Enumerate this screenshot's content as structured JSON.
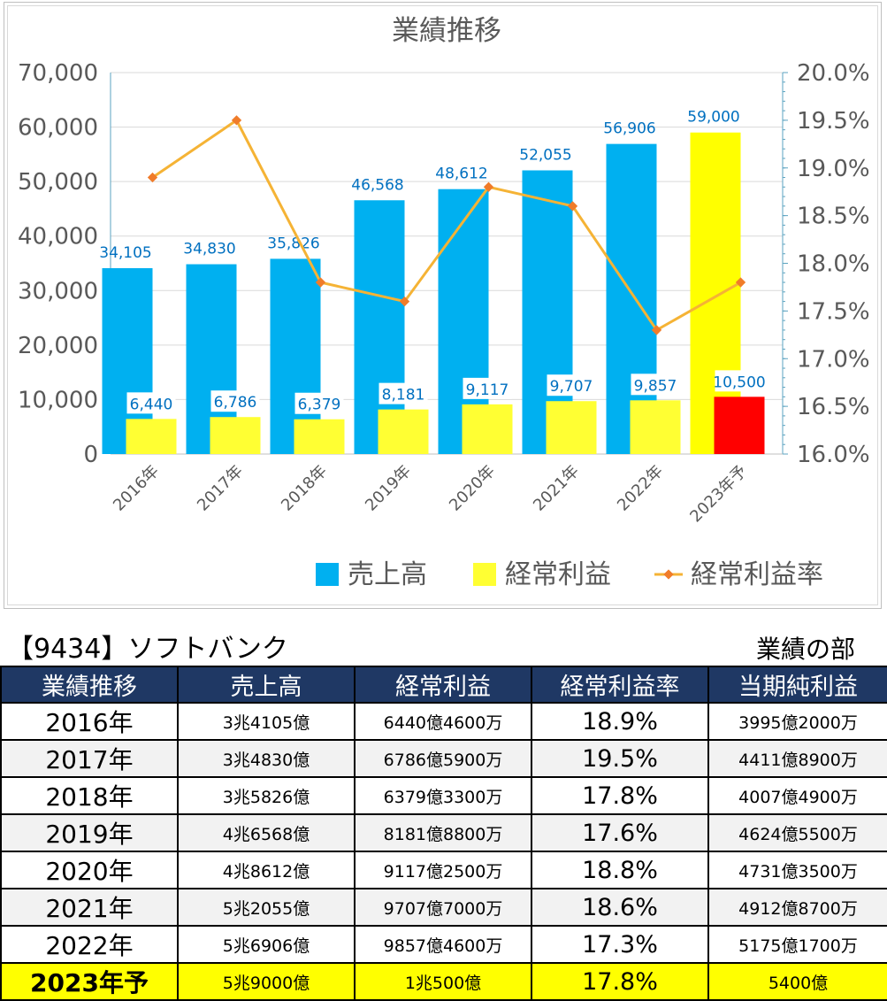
{
  "chart_data": {
    "type": "bar",
    "title": "業績推移",
    "categories": [
      "2016年",
      "2017年",
      "2018年",
      "2019年",
      "2020年",
      "2021年",
      "2022年",
      "2023年予"
    ],
    "series": [
      {
        "name": "売上高",
        "kind": "bar",
        "axis": "left",
        "color": "#00b0f0",
        "forecast_color": "#ffff00",
        "values": [
          34105,
          34830,
          35826,
          46568,
          48612,
          52055,
          56906,
          59000
        ],
        "labels": [
          "34,105",
          "34,830",
          "35,826",
          "46,568",
          "48,612",
          "52,055",
          "56,906",
          "59,000"
        ]
      },
      {
        "name": "経常利益",
        "kind": "bar",
        "axis": "left",
        "color": "#ffff33",
        "forecast_color": "#ff0000",
        "values": [
          6440,
          6786,
          6379,
          8181,
          9117,
          9707,
          9857,
          10500
        ],
        "labels": [
          "6,440",
          "6,786",
          "6,379",
          "8,181",
          "9,117",
          "9,707",
          "9,857",
          "10,500"
        ]
      },
      {
        "name": "経常利益率",
        "kind": "line",
        "axis": "right",
        "color": "#f5b335",
        "marker_color": "#f07c2a",
        "values": [
          18.9,
          19.5,
          17.8,
          17.6,
          18.8,
          18.6,
          17.3,
          17.8
        ]
      }
    ],
    "y_left": {
      "ylim": [
        0,
        70000
      ],
      "ticks": [
        "0",
        "10,000",
        "20,000",
        "30,000",
        "40,000",
        "50,000",
        "60,000",
        "70,000"
      ]
    },
    "y_right": {
      "ylim": [
        16.0,
        20.0
      ],
      "ticks": [
        "16.0%",
        "16.5%",
        "17.0%",
        "17.5%",
        "18.0%",
        "18.5%",
        "19.0%",
        "19.5%",
        "20.0%"
      ]
    },
    "grid": true,
    "legend": "bottom"
  },
  "company": "【9434】ソフトバンク",
  "section": "業績の部",
  "table": {
    "headers": [
      "業績推移",
      "売上高",
      "経常利益",
      "経常利益率",
      "当期純利益"
    ],
    "rows": [
      [
        "2016年",
        "3兆4105億",
        "6440億4600万",
        "18.9%",
        "3995億2000万"
      ],
      [
        "2017年",
        "3兆4830億",
        "6786億5900万",
        "19.5%",
        "4411億8900万"
      ],
      [
        "2018年",
        "3兆5826億",
        "6379億3300万",
        "17.8%",
        "4007億4900万"
      ],
      [
        "2019年",
        "4兆6568億",
        "8181億8800万",
        "17.6%",
        "4624億5500万"
      ],
      [
        "2020年",
        "4兆8612億",
        "9117億2500万",
        "18.8%",
        "4731億3500万"
      ],
      [
        "2021年",
        "5兆2055億",
        "9707億7000万",
        "18.6%",
        "4912億8700万"
      ],
      [
        "2022年",
        "5兆6906億",
        "9857億4600万",
        "17.3%",
        "5175億1700万"
      ],
      [
        "2023年予",
        "5兆9000億",
        "1兆500億",
        "17.8%",
        "5400億"
      ]
    ]
  }
}
